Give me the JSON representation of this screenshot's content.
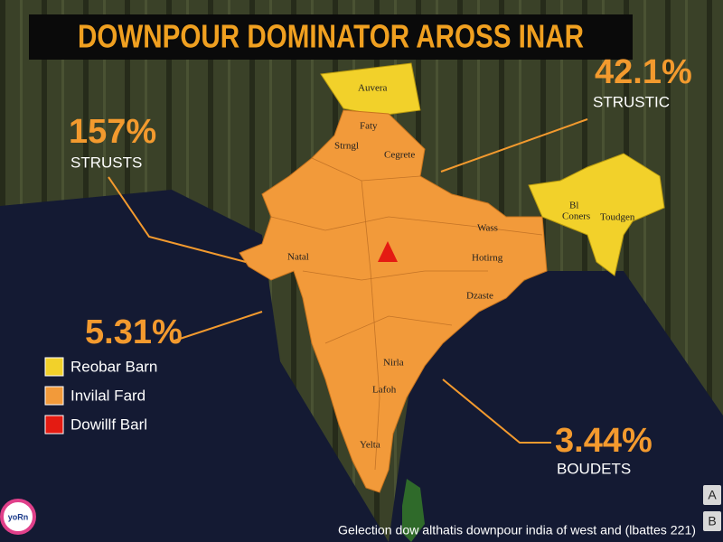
{
  "header": {
    "title": "DOWNPOUR DOMINATOR AROSS INAR"
  },
  "callouts": [
    {
      "value": "42.1%",
      "label": "STRUSTIC"
    },
    {
      "value": "157%",
      "label": "STRUSTS"
    },
    {
      "value": "5.31%"
    },
    {
      "value": "3.44%",
      "label": "BOUDETS"
    }
  ],
  "legend": [
    "Reobar Barn",
    "Invilal Fard",
    "Dowillf Barl"
  ],
  "map_labels": [
    "Auvera",
    "Faty",
    "Strngl",
    "Cegrete",
    "Natal",
    "Wass",
    "Hotirng",
    "Dzaste",
    "Nirla",
    "Lafoh",
    "Yelta",
    "Bl",
    "Coners",
    "Toudgen"
  ],
  "logo": "yoRn",
  "buttons": [
    "A",
    "B"
  ],
  "footer": {
    "caption": "Gelection dow althatis downpour india of west and (lbattes 221)"
  }
}
